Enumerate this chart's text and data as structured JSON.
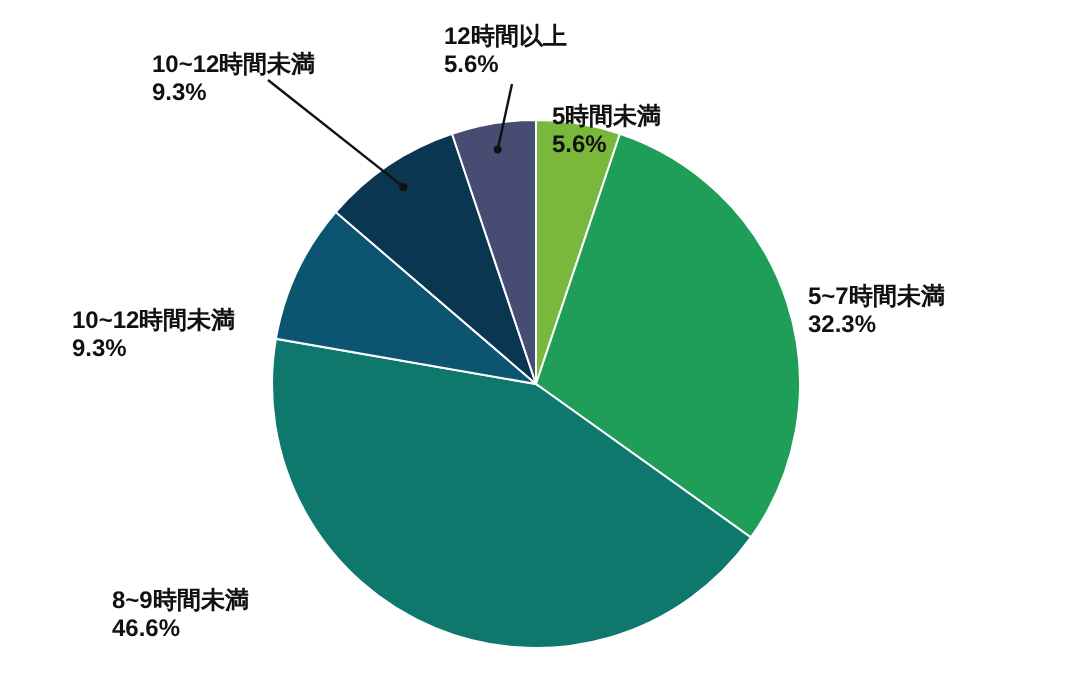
{
  "chart_data": {
    "type": "pie",
    "categories": [
      "5時間未満",
      "5~7時間未満",
      "8~9時間未満",
      "10~12時間未満",
      "10~12時間未満",
      "12時間以上"
    ],
    "values": [
      5.6,
      32.3,
      46.6,
      9.3,
      9.3,
      5.6
    ],
    "value_labels": [
      "5.6%",
      "32.3%",
      "46.6%",
      "9.3%",
      "9.3%",
      "5.6%"
    ],
    "colors": [
      "#79b83a",
      "#1e9e58",
      "#0e786c",
      "#0b5570",
      "#0a3652",
      "#474c72"
    ]
  }
}
